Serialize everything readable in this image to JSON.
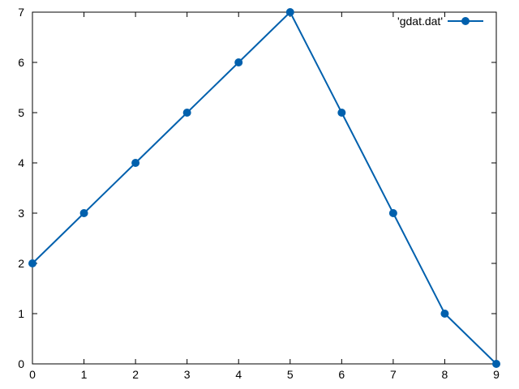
{
  "chart_data": {
    "type": "line",
    "title": "",
    "xlabel": "",
    "ylabel": "",
    "xlim": [
      0,
      9
    ],
    "ylim": [
      0,
      7
    ],
    "xticks": [
      "0",
      "1",
      "2",
      "3",
      "4",
      "5",
      "6",
      "7",
      "8",
      "9"
    ],
    "yticks": [
      "0",
      "1",
      "2",
      "3",
      "4",
      "5",
      "6",
      "7"
    ],
    "grid": false,
    "legend_position": "top-right",
    "series": [
      {
        "name": "'gdat.dat'",
        "color": "#0060ad",
        "marker": "circle",
        "x": [
          0,
          1,
          2,
          3,
          4,
          5,
          6,
          7,
          8,
          9
        ],
        "y": [
          2,
          3,
          4,
          5,
          6,
          7,
          5,
          3,
          1,
          0
        ]
      }
    ]
  }
}
